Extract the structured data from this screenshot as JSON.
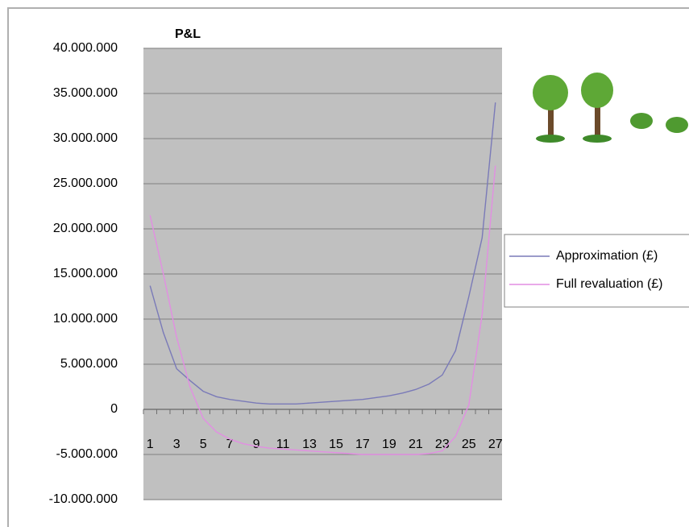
{
  "chart_data": {
    "type": "line",
    "title": "P&L",
    "categories": [
      "1",
      null,
      "3",
      null,
      "5",
      null,
      "7",
      null,
      "9",
      null,
      "11",
      null,
      "13",
      null,
      "15",
      null,
      "17",
      null,
      "19",
      null,
      "21",
      null,
      "23",
      null,
      "25",
      null,
      "27"
    ],
    "series": [
      {
        "name": "Approximation (£)",
        "color": "#7a7ab8",
        "values": [
          13700000,
          8500000,
          4500000,
          3200000,
          2000000,
          1400000,
          1100000,
          900000,
          700000,
          600000,
          600000,
          600000,
          700000,
          800000,
          900000,
          1000000,
          1100000,
          1300000,
          1500000,
          1800000,
          2200000,
          2800000,
          3800000,
          6500000,
          12500000,
          19000000,
          34000000
        ]
      },
      {
        "name": "Full revaluation (£)",
        "color": "#e28ee2",
        "values": [
          21500000,
          15000000,
          8000000,
          2500000,
          -1000000,
          -2500000,
          -3300000,
          -3800000,
          -4100000,
          -4300000,
          -4400000,
          -4500000,
          -4600000,
          -4700000,
          -4800000,
          -4900000,
          -5000000,
          -5000000,
          -5000000,
          -5000000,
          -5000000,
          -4900000,
          -4600000,
          -3000000,
          500000,
          10500000,
          27000000
        ]
      }
    ],
    "ylim": [
      -10000000,
      40000000
    ],
    "yticks": [
      {
        "value": -10000000,
        "label": "-10.000.000"
      },
      {
        "value": -5000000,
        "label": "-5.000.000"
      },
      0,
      {
        "value": 5000000,
        "label": "5.000.000"
      },
      {
        "value": 10000000,
        "label": "10.000.000"
      },
      {
        "value": 15000000,
        "label": "15.000.000"
      },
      {
        "value": 20000000,
        "label": "20.000.000"
      },
      {
        "value": 25000000,
        "label": "25.000.000"
      },
      {
        "value": 30000000,
        "label": "30.000.000"
      },
      {
        "value": 35000000,
        "label": "35.000.000"
      },
      {
        "value": 40000000,
        "label": "40.000.000"
      }
    ],
    "grid": true,
    "negative_tick_color": "#ff1a1a",
    "legend": "right"
  }
}
